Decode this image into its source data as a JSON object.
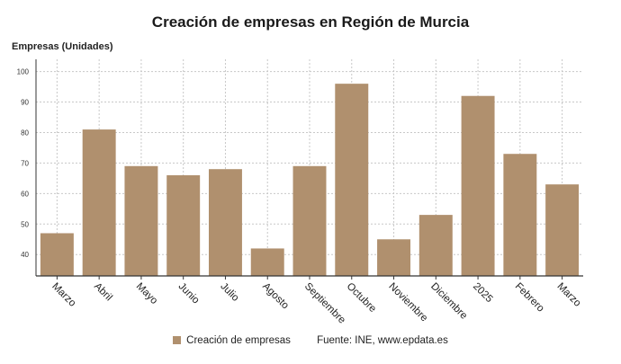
{
  "chart_data": {
    "type": "bar",
    "title": "Creación de empresas en Región de Murcia",
    "ylabel": "Empresas (Unidades)",
    "xlabel": "",
    "categories": [
      "Marzo",
      "Abril",
      "Mayo",
      "Junio",
      "Julio",
      "Agosto",
      "Septiembre",
      "Octubre",
      "Noviembre",
      "Diciembre",
      "2025",
      "Febrero",
      "Marzo"
    ],
    "series": [
      {
        "name": "Creación de empresas",
        "values": [
          47,
          81,
          69,
          66,
          68,
          42,
          69,
          96,
          45,
          53,
          92,
          73,
          63
        ],
        "color": "#b0906e"
      }
    ],
    "ylim": [
      33,
      104
    ],
    "yticks": [
      40,
      50,
      60,
      70,
      80,
      90,
      100
    ],
    "grid": true,
    "legend_position": "bottom",
    "colors": {
      "bar": "#b0906e",
      "grid": "#c8c8c8",
      "axis": "#333333"
    }
  },
  "footer": {
    "legend_label": "Creación de empresas",
    "source": "Fuente: INE, www.epdata.es"
  }
}
